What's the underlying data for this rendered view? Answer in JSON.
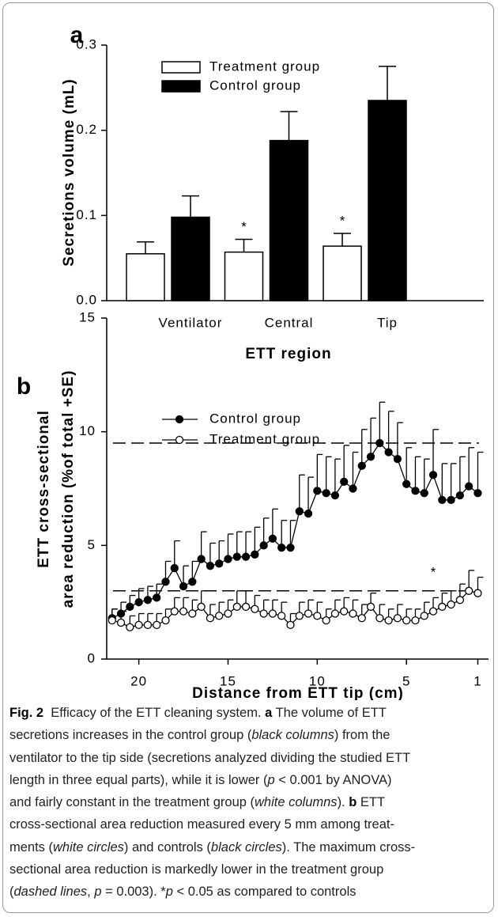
{
  "chart_data": [
    {
      "type": "bar",
      "panel": "a",
      "xlabel": "ETT region",
      "ylabel": "Secretions volume (mL)",
      "categories": [
        "Ventilator",
        "Central",
        "Tip"
      ],
      "ylim": [
        0,
        0.3
      ],
      "yticks": [
        {
          "value": 0,
          "label": "0.0"
        },
        0.1,
        0.2,
        0.3
      ],
      "series": [
        {
          "name": "Treatment group",
          "color": "#ffffff",
          "values": [
            0.055,
            0.057,
            0.064
          ],
          "errors": [
            0.014,
            0.015,
            0.015
          ]
        },
        {
          "name": "Control group",
          "color": "#000000",
          "values": [
            0.098,
            0.188,
            0.235
          ],
          "errors": [
            0.025,
            0.034,
            0.04
          ]
        }
      ],
      "annotations": [
        {
          "text": "*",
          "category": "Central"
        },
        {
          "text": "*",
          "category": "Tip"
        }
      ]
    },
    {
      "type": "line",
      "panel": "b",
      "xlabel": "Distance from ETT tip (cm)",
      "ylabel": [
        "ETT cross-sectional",
        "area reduction (%of total +SE)"
      ],
      "x": [
        21.5,
        21,
        20.5,
        20,
        19.5,
        19,
        18.5,
        18,
        17.5,
        17,
        16.5,
        16,
        15.5,
        15,
        14.5,
        14,
        13.5,
        13,
        12.5,
        12,
        11.5,
        11,
        10.5,
        10,
        9.5,
        9,
        8.5,
        8,
        7.5,
        7,
        6.5,
        6,
        5.5,
        5,
        4.5,
        4,
        3.5,
        3,
        2.5,
        2,
        1.5,
        1
      ],
      "xlim": [
        21.8,
        0.4
      ],
      "xticks": [
        20,
        15,
        10,
        5,
        1
      ],
      "ylim": [
        0,
        15
      ],
      "yticks": [
        0,
        5,
        10,
        15
      ],
      "series": [
        {
          "name": "Control group",
          "color": "#000000",
          "marker_fill": "#000000",
          "values": [
            1.8,
            2.0,
            2.3,
            2.5,
            2.6,
            2.7,
            3.4,
            4.0,
            3.2,
            3.4,
            4.4,
            4.1,
            4.2,
            4.4,
            4.5,
            4.5,
            4.6,
            5.0,
            5.3,
            4.9,
            4.9,
            6.5,
            6.4,
            7.4,
            7.3,
            7.2,
            7.8,
            7.5,
            8.5,
            8.9,
            9.5,
            9.1,
            8.8,
            7.7,
            7.4,
            7.3,
            8.1,
            7.0,
            7.0,
            7.2,
            7.6,
            7.3
          ],
          "errors": [
            0.4,
            0.5,
            0.5,
            0.6,
            0.6,
            0.6,
            0.9,
            1.2,
            0.9,
            0.9,
            1.2,
            1.0,
            1.0,
            1.1,
            1.1,
            1.1,
            1.2,
            1.2,
            1.3,
            1.2,
            1.2,
            1.6,
            1.6,
            1.6,
            1.6,
            1.6,
            1.6,
            1.6,
            1.6,
            1.7,
            1.8,
            1.8,
            1.6,
            1.6,
            1.5,
            1.5,
            2.0,
            1.6,
            1.6,
            1.7,
            1.7,
            1.8
          ]
        },
        {
          "name": "Treatment group",
          "color": "#000000",
          "marker_fill": "#ffffff",
          "values": [
            1.7,
            1.6,
            1.4,
            1.5,
            1.5,
            1.5,
            1.7,
            2.1,
            2.1,
            2.0,
            2.3,
            1.8,
            1.9,
            2.0,
            2.3,
            2.3,
            2.2,
            2.0,
            2.0,
            1.9,
            1.5,
            1.9,
            2.0,
            1.9,
            1.7,
            2.0,
            2.1,
            2.0,
            1.8,
            2.3,
            1.8,
            1.7,
            1.8,
            1.7,
            1.7,
            1.9,
            2.1,
            2.3,
            2.4,
            2.6,
            3.0,
            2.9
          ],
          "errors": [
            0.5,
            0.5,
            0.5,
            0.5,
            0.5,
            0.5,
            0.5,
            0.6,
            0.6,
            0.6,
            0.7,
            0.6,
            0.6,
            0.6,
            0.7,
            0.7,
            0.6,
            0.6,
            0.6,
            0.6,
            0.5,
            0.6,
            0.6,
            0.6,
            0.5,
            0.6,
            0.6,
            0.6,
            0.6,
            0.6,
            0.6,
            0.5,
            0.6,
            0.5,
            0.5,
            0.6,
            0.6,
            0.6,
            0.6,
            0.7,
            0.9,
            0.7
          ]
        }
      ],
      "reference_lines": [
        9.5,
        3.0
      ],
      "annotations": [
        {
          "text": "*",
          "x": 3.5,
          "y": 3.8
        }
      ]
    }
  ],
  "caption": {
    "lines": [
      [
        {
          "text": "Fig. 2",
          "style": "b"
        },
        {
          "text": "  Efficacy of the ETT cleaning system. "
        },
        {
          "text": "a",
          "style": "b"
        },
        {
          "text": " The volume of ETT"
        }
      ],
      [
        {
          "text": "secretions increases in the control group ("
        },
        {
          "text": "black columns",
          "style": "i"
        },
        {
          "text": ") from the"
        }
      ],
      [
        {
          "text": "ventilator to the tip side (secretions analyzed dividing the studied ETT"
        }
      ],
      [
        {
          "text": "length in three equal parts), while it is lower ("
        },
        {
          "text": "p",
          "style": "i"
        },
        {
          "text": " < 0.001 by ANOVA)"
        }
      ],
      [
        {
          "text": "and fairly constant in the treatment group ("
        },
        {
          "text": "white columns",
          "style": "i"
        },
        {
          "text": "). "
        },
        {
          "text": "b",
          "style": "b"
        },
        {
          "text": " ETT"
        }
      ],
      [
        {
          "text": "cross-sectional area reduction measured every 5 mm among treat-"
        }
      ],
      [
        {
          "text": "ments ("
        },
        {
          "text": "white circles",
          "style": "i"
        },
        {
          "text": ") and controls ("
        },
        {
          "text": "black circles",
          "style": "i"
        },
        {
          "text": "). The maximum cross-"
        }
      ],
      [
        {
          "text": "sectional area reduction is markedly lower in the treatment group"
        }
      ],
      [
        {
          "text": "("
        },
        {
          "text": "dashed lines",
          "style": "i"
        },
        {
          "text": ", "
        },
        {
          "text": "p",
          "style": "i"
        },
        {
          "text": " = 0.003). *"
        },
        {
          "text": "p",
          "style": "i"
        },
        {
          "text": " < 0.05 as compared to controls"
        }
      ]
    ]
  }
}
